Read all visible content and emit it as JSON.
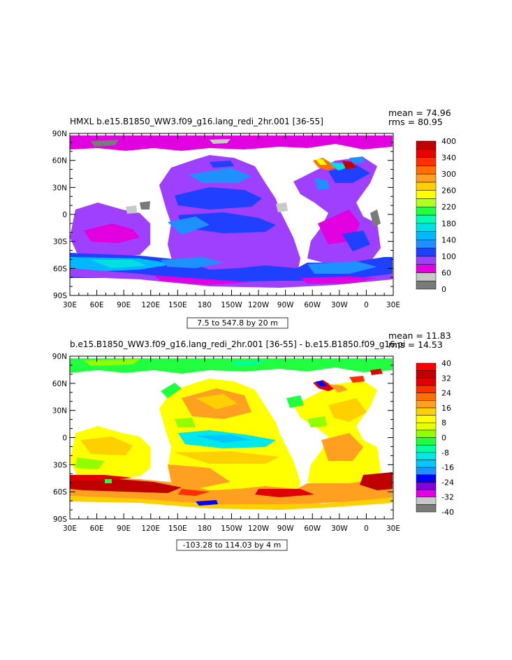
{
  "panels": [
    {
      "title": "HMXL b.e15.B1850_WW3.f09_g16.lang_redi_2hr.001 [36-55]",
      "stats": {
        "mean": "mean = 74.96",
        "rms": "rms = 80.95"
      },
      "range_label": "7.5 to 547.8 by 20 m",
      "colorbar": {
        "labels": [
          "400",
          "340",
          "300",
          "260",
          "220",
          "180",
          "140",
          "100",
          "60",
          "0"
        ],
        "colors": [
          "#7a7a7a",
          "#c8c8c8",
          "#e000e0",
          "#a040ff",
          "#2040ff",
          "#1e90ff",
          "#00b8ff",
          "#00e0e0",
          "#00ffb0",
          "#20ff40",
          "#b0ff20",
          "#ffff00",
          "#ffd000",
          "#ffa020",
          "#ff7000",
          "#ff3000",
          "#e80000",
          "#c00000"
        ]
      }
    },
    {
      "title": "b.e15.B1850_WW3.f09_g16.lang_redi_2hr.001 [36-55] - b.e15.B1850.f09_g16.pi",
      "stats": {
        "mean": "mean = 11.83",
        "rms": "rms = 14.53"
      },
      "range_label": "-103.28 to 114.03 by 4 m",
      "colorbar": {
        "labels": [
          "40",
          "32",
          "24",
          "16",
          "8",
          "0",
          "-8",
          "-16",
          "-24",
          "-32",
          "-40"
        ],
        "colors": [
          "#7a7a7a",
          "#c8c8c8",
          "#e000e0",
          "#8000e0",
          "#0000ff",
          "#1e90ff",
          "#00c8ff",
          "#00e8e8",
          "#00ffa0",
          "#20ff40",
          "#90ff00",
          "#e8ff00",
          "#ffff00",
          "#ffd000",
          "#ffa020",
          "#ff7000",
          "#ff3000",
          "#e00000",
          "#c00000",
          "#ff0000"
        ]
      }
    }
  ],
  "axes": {
    "lat_labels": [
      "90N",
      "60N",
      "30N",
      "0",
      "30S",
      "60S",
      "90S"
    ],
    "lon_labels": [
      "30E",
      "60E",
      "90E",
      "120E",
      "150E",
      "180",
      "150W",
      "120W",
      "90W",
      "60W",
      "30W",
      "0",
      "30E"
    ]
  }
}
